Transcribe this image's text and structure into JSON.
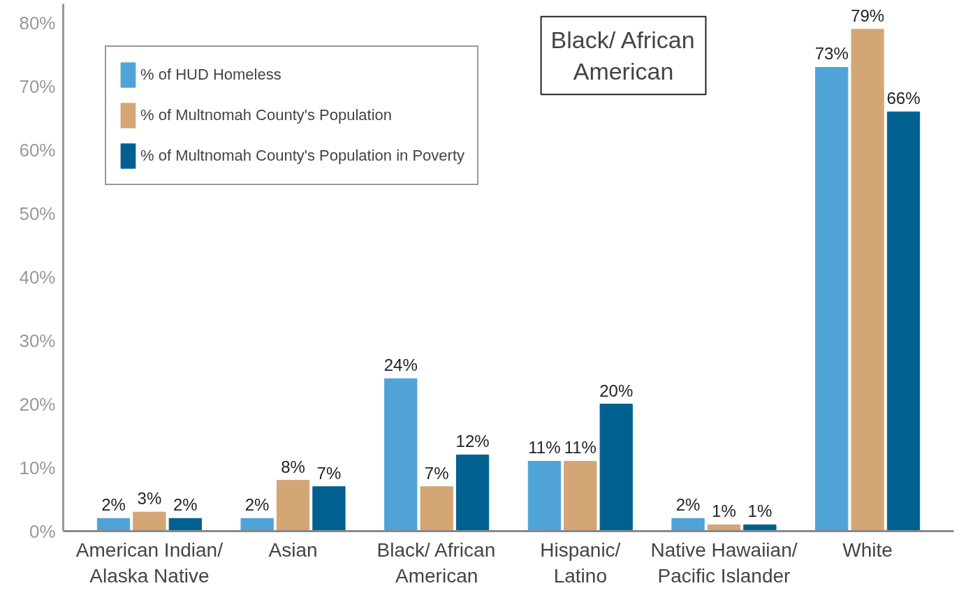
{
  "chart_data": {
    "type": "bar",
    "categories": [
      "American Indian/\nAlaska Native",
      "Asian",
      "Black/ African\nAmerican",
      "Hispanic/\nLatino",
      "Native Hawaiian/\nPacific Islander",
      "White"
    ],
    "series": [
      {
        "name": "% of HUD Homeless",
        "color": "#4fa3d6",
        "values": [
          2,
          2,
          24,
          11,
          2,
          73
        ],
        "value_labels": [
          "2%",
          "2%",
          "24%",
          "11%",
          "2%",
          "73%"
        ]
      },
      {
        "name": "% of Multnomah County's Population",
        "color": "#d4a676",
        "values": [
          3,
          8,
          7,
          11,
          1,
          79
        ],
        "value_labels": [
          "3%",
          "8%",
          "7%",
          "11%",
          "1%",
          "79%"
        ]
      },
      {
        "name": "% of Multnomah County's Population in Poverty",
        "color": "#006090",
        "values": [
          2,
          7,
          12,
          20,
          1,
          66
        ],
        "value_labels": [
          "2%",
          "7%",
          "12%",
          "20%",
          "1%",
          "66%"
        ]
      }
    ],
    "ylim": [
      0,
      83
    ],
    "yticks": [
      {
        "value": 0,
        "label": "0%"
      },
      {
        "value": 10,
        "label": "10%"
      },
      {
        "value": 20,
        "label": "20%"
      },
      {
        "value": 30,
        "label": "30%"
      },
      {
        "value": 40,
        "label": "40%"
      },
      {
        "value": 50,
        "label": "50%"
      },
      {
        "value": 60,
        "label": "60%"
      },
      {
        "value": 70,
        "label": "70%"
      },
      {
        "value": 80,
        "label": "80%"
      }
    ],
    "legend": "top left",
    "grid": false,
    "annotations": [
      "Black/ African\nAmerican"
    ]
  }
}
